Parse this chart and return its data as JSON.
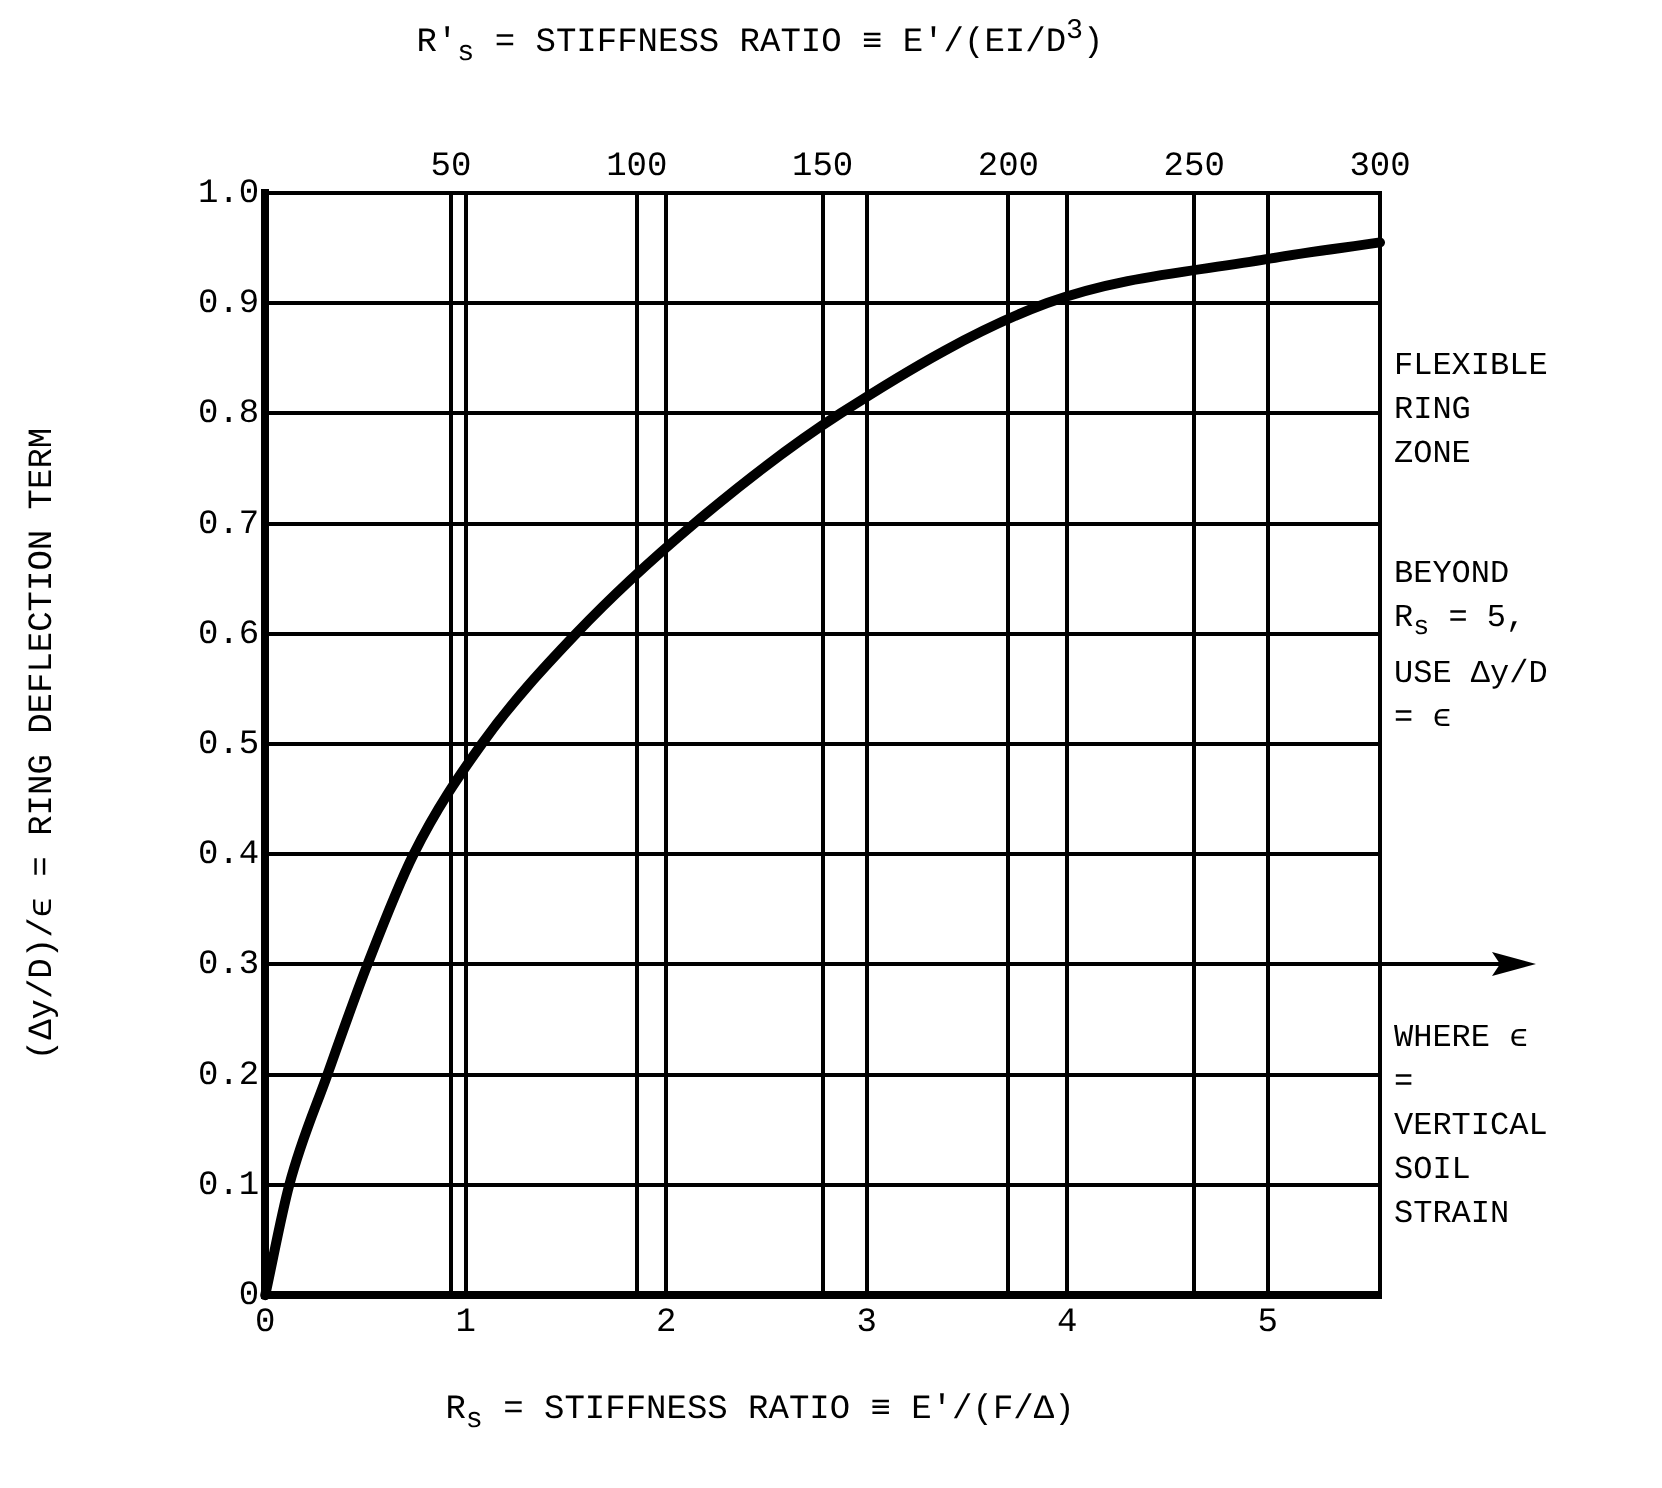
{
  "chart_data": {
    "type": "line",
    "xlabel": "R$_{s}$ = STIFFNESS RATIO ≡ E'/(F/Δ)",
    "x2label": "R'$_{s}$ = STIFFNESS RATIO ≡ E'/(EI/D$^{3}$)",
    "ylabel": "(Δy/D)/ϵ = RING DEFLECTION TERM",
    "x": [
      0,
      0.12,
      0.31,
      0.51,
      0.74,
      1.08,
      1.55,
      2.14,
      2.87,
      3.9,
      5,
      5.56
    ],
    "series": [
      {
        "color": "#000000",
        "values": [
          0,
          0.1,
          0.2,
          0.3,
          0.4,
          0.5,
          0.6,
          0.7,
          0.8,
          0.9,
          0.94,
          0.955
        ]
      }
    ],
    "xlim": [
      0,
      5.56
    ],
    "xticks": [
      0,
      1,
      2,
      3,
      4,
      5
    ],
    "x2lim": [
      0,
      300
    ],
    "x2ticks": [
      50,
      100,
      150,
      200,
      250,
      300
    ],
    "ylim": [
      0,
      1
    ],
    "yticks": [
      0,
      0.1,
      0.2,
      0.3,
      0.4,
      0.5,
      0.6,
      0.7,
      0.8,
      0.9,
      {
        "value": 1,
        "label": "1.0"
      }
    ],
    "annotations": [
      "FLEXIBLE RING ZONE",
      "BEYOND R$_{s}$ = 5, USE Δy/D = ϵ",
      "WHERE ϵ = VERTICAL SOIL STRAIN"
    ],
    "grid": true,
    "legend": false,
    "marker": "none",
    "line_style": "solid"
  }
}
